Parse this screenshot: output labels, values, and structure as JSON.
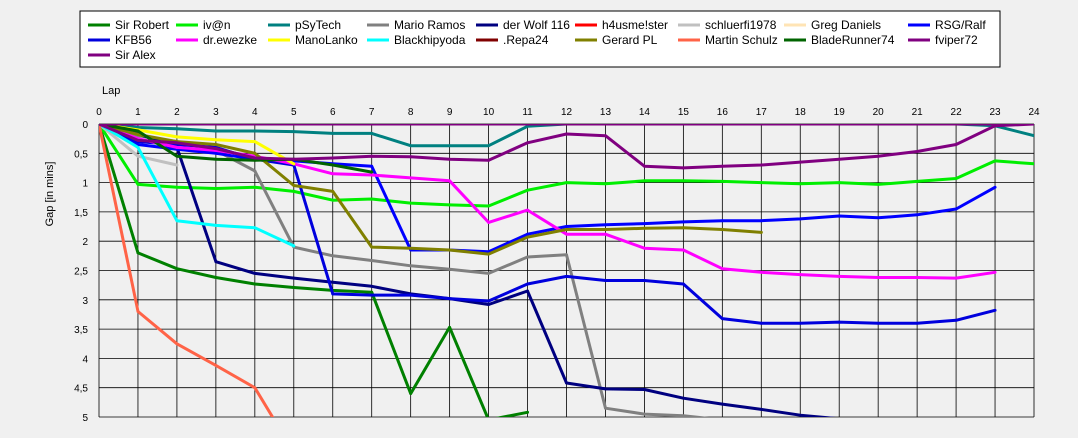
{
  "chart_data": {
    "type": "line",
    "title": "",
    "xlabel": "Lap",
    "ylabel": "Gap [in mins]",
    "xlim": [
      0,
      24
    ],
    "ylim": [
      0,
      5
    ],
    "x_reversed": false,
    "y_reversed": true,
    "x_ticks": [
      "0",
      "1",
      "2",
      "3",
      "4",
      "5",
      "6",
      "7",
      "8",
      "9",
      "10",
      "11",
      "12",
      "13",
      "14",
      "15",
      "16",
      "17",
      "18",
      "19",
      "20",
      "21",
      "22",
      "23",
      "24"
    ],
    "y_ticks": [
      "0",
      "0,5",
      "1",
      "1,5",
      "2",
      "2,5",
      "3",
      "3,5",
      "4",
      "4,5",
      "5"
    ],
    "grid": true,
    "legend_position": "top",
    "series": [
      {
        "name": "Sir Robert",
        "color": "#008000",
        "x": [
          0,
          1,
          2,
          3,
          4,
          5,
          6,
          7,
          8,
          9,
          10,
          11
        ],
        "y": [
          0,
          2.2,
          2.47,
          2.62,
          2.73,
          2.79,
          2.84,
          2.87,
          4.6,
          3.47,
          5.05,
          4.92
        ]
      },
      {
        "name": "iv@n",
        "color": "#00ee00",
        "x": [
          0,
          1,
          2,
          3,
          4,
          5,
          6,
          7,
          8,
          9,
          10,
          11,
          12,
          13,
          14,
          15,
          16,
          17,
          18,
          19,
          20,
          21,
          22,
          23,
          24
        ],
        "y": [
          0,
          1.03,
          1.08,
          1.1,
          1.08,
          1.15,
          1.3,
          1.28,
          1.35,
          1.38,
          1.4,
          1.13,
          1.0,
          1.02,
          0.97,
          0.97,
          0.98,
          1.0,
          1.02,
          1.0,
          1.03,
          0.98,
          0.93,
          0.63,
          0.68
        ]
      },
      {
        "name": "pSyTech",
        "color": "#008080",
        "x": [
          0,
          1,
          2,
          3,
          4,
          5,
          6,
          7,
          8,
          9,
          10,
          11,
          12,
          13,
          14,
          15,
          16,
          17,
          18,
          19,
          20,
          21,
          22,
          23,
          24
        ],
        "y": [
          0,
          0.06,
          0.08,
          0.12,
          0.12,
          0.13,
          0.16,
          0.16,
          0.37,
          0.37,
          0.37,
          0.04,
          0,
          0,
          0,
          0,
          0,
          0,
          0,
          0,
          0,
          0,
          0,
          0.03,
          0.2
        ]
      },
      {
        "name": "Mario Ramos",
        "color": "#808080",
        "x": [
          0,
          1,
          2,
          3,
          4,
          5,
          6,
          7,
          8,
          9,
          10,
          11,
          12,
          13,
          14,
          15,
          16
        ],
        "y": [
          0,
          0.2,
          0.3,
          0.45,
          0.8,
          2.1,
          2.25,
          2.33,
          2.42,
          2.48,
          2.55,
          2.27,
          2.23,
          4.85,
          4.95,
          4.98,
          5.05
        ]
      },
      {
        "name": "der Wolf 116",
        "color": "#000080",
        "x": [
          0,
          1,
          2,
          3,
          4,
          5,
          6,
          7,
          8,
          9,
          10,
          11,
          12,
          13,
          14,
          15,
          16,
          17,
          18,
          19
        ],
        "y": [
          0,
          0.17,
          0.4,
          2.35,
          2.55,
          2.63,
          2.7,
          2.77,
          2.9,
          2.98,
          3.08,
          2.85,
          4.42,
          4.52,
          4.53,
          4.68,
          4.78,
          4.87,
          4.97,
          5.03
        ]
      },
      {
        "name": "h4usme!ster",
        "color": "#ff0000",
        "x": [],
        "y": []
      },
      {
        "name": "schluerfi1978",
        "color": "#c0c0c0",
        "x": [
          0,
          1,
          2
        ],
        "y": [
          0,
          0.55,
          0.7
        ]
      },
      {
        "name": "Greg Daniels",
        "color": "#ffe4b5",
        "x": [],
        "y": []
      },
      {
        "name": "RSG/Ralf",
        "color": "#0000ff",
        "x": [
          0,
          1,
          2,
          3,
          4,
          5,
          6,
          7,
          8,
          9,
          10,
          11,
          12,
          13,
          14,
          15,
          16,
          17,
          18,
          19,
          20,
          21,
          22,
          23
        ],
        "y": [
          0,
          0.35,
          0.43,
          0.5,
          0.6,
          0.63,
          0.68,
          0.72,
          2.15,
          2.15,
          2.18,
          1.88,
          1.75,
          1.72,
          1.7,
          1.67,
          1.65,
          1.65,
          1.62,
          1.57,
          1.6,
          1.55,
          1.45,
          1.08
        ]
      },
      {
        "name": "KFB56",
        "color": "#0000dd",
        "x": [
          0,
          1,
          2,
          3,
          4,
          5,
          6,
          7,
          8,
          9,
          10,
          11,
          12,
          13,
          14,
          15,
          16,
          17,
          18,
          19,
          20,
          21,
          22,
          23
        ],
        "y": [
          0,
          0.3,
          0.35,
          0.4,
          0.6,
          0.7,
          2.9,
          2.92,
          2.92,
          2.98,
          3.02,
          2.73,
          2.6,
          2.67,
          2.67,
          2.73,
          3.32,
          3.4,
          3.4,
          3.38,
          3.4,
          3.4,
          3.35,
          3.18
        ]
      },
      {
        "name": "dr.ewezke",
        "color": "#ff00ff",
        "x": [
          0,
          1,
          2,
          3,
          4,
          5,
          6,
          7,
          8,
          9,
          10,
          11,
          12,
          13,
          14,
          15,
          16,
          17,
          18,
          19,
          20,
          21,
          22,
          23
        ],
        "y": [
          0,
          0.25,
          0.4,
          0.45,
          0.55,
          0.68,
          0.85,
          0.87,
          0.92,
          0.97,
          1.68,
          1.47,
          1.88,
          1.88,
          2.12,
          2.15,
          2.47,
          2.53,
          2.57,
          2.6,
          2.62,
          2.62,
          2.63,
          2.53
        ]
      },
      {
        "name": "ManoLanko",
        "color": "#ffff00",
        "x": [
          0,
          1,
          2,
          3,
          4,
          5
        ],
        "y": [
          0,
          0.1,
          0.22,
          0.27,
          0.3,
          0.68
        ]
      },
      {
        "name": "Blackhipyoda",
        "color": "#00ffff",
        "x": [
          0,
          1,
          2,
          3,
          4,
          5
        ],
        "y": [
          0,
          0.4,
          1.65,
          1.73,
          1.77,
          2.08
        ]
      },
      {
        "name": ".Repa24",
        "color": "#800000",
        "x": [
          0,
          1,
          2,
          3,
          4,
          5,
          6,
          7,
          8,
          9,
          10,
          11,
          12,
          13,
          14,
          15,
          16,
          17,
          18,
          19,
          20,
          21,
          22,
          23,
          24
        ],
        "y": [
          0,
          0,
          0,
          0,
          0,
          0,
          0,
          0,
          0,
          0,
          0,
          0,
          0,
          0,
          0,
          0,
          0,
          0,
          0,
          0,
          0,
          0,
          0,
          0,
          0
        ]
      },
      {
        "name": "Gerard PL",
        "color": "#808000",
        "x": [
          0,
          1,
          2,
          3,
          4,
          5,
          6,
          7,
          8,
          9,
          10,
          11,
          12,
          13,
          14,
          15,
          16,
          17
        ],
        "y": [
          0,
          0.18,
          0.3,
          0.35,
          0.5,
          1.05,
          1.15,
          2.1,
          2.12,
          2.15,
          2.22,
          1.93,
          1.8,
          1.8,
          1.78,
          1.77,
          1.8,
          1.85
        ]
      },
      {
        "name": "Martin Schulz",
        "color": "#ff6347",
        "x": [
          0,
          1,
          2,
          3,
          4,
          5
        ],
        "y": [
          0,
          3.2,
          3.75,
          4.12,
          4.5,
          5.6
        ]
      },
      {
        "name": "BladeRunner74",
        "color": "#006400",
        "x": [
          0,
          1,
          2,
          3,
          4,
          5,
          6,
          7
        ],
        "y": [
          0,
          0.12,
          0.55,
          0.6,
          0.62,
          0.6,
          0.7,
          0.82
        ]
      },
      {
        "name": "fviper72",
        "color": "#800080",
        "x": [
          0,
          1,
          2,
          3,
          4,
          5,
          6,
          7,
          8,
          9,
          10,
          11,
          12,
          13,
          14,
          15,
          16,
          17,
          18,
          19,
          20,
          21,
          22,
          23,
          24
        ],
        "y": [
          0,
          0.28,
          0.32,
          0.42,
          0.58,
          0.6,
          0.58,
          0.55,
          0.56,
          0.6,
          0.62,
          0.32,
          0.17,
          0.2,
          0.72,
          0.75,
          0.72,
          0.7,
          0.65,
          0.6,
          0.55,
          0.47,
          0.35,
          0.03,
          0
        ]
      },
      {
        "name": "Sir Alex",
        "color": "#800080",
        "x": [
          0,
          1,
          2,
          3,
          4,
          5,
          6,
          7,
          8,
          9,
          10,
          11,
          12,
          13,
          14,
          15,
          16,
          17,
          18,
          19,
          20,
          21,
          22,
          23,
          24
        ],
        "y": [
          0,
          0,
          0,
          0,
          0,
          0,
          0,
          0,
          0,
          0,
          0,
          0,
          0,
          0,
          0,
          0,
          0,
          0,
          0,
          0,
          0,
          0,
          0,
          0,
          0
        ]
      }
    ]
  }
}
